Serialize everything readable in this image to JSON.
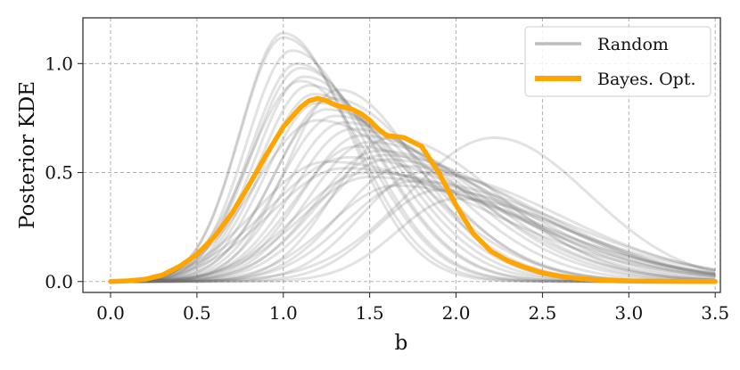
{
  "chart_data": {
    "type": "line",
    "xlabel": "b",
    "ylabel": "Posterior KDE",
    "xlim": [
      -0.16,
      3.53
    ],
    "ylim": [
      -0.05,
      1.21
    ],
    "xticks": [
      "0.0",
      "0.5",
      "1.0",
      "1.5",
      "2.0",
      "2.5",
      "3.0",
      "3.5"
    ],
    "yticks": [
      "0.0",
      "0.5",
      "1.0"
    ],
    "grid": true,
    "legend_position": "top-right",
    "legend": [
      {
        "label": "Random",
        "color": "#bdbdbd"
      },
      {
        "label": "Bayes. Opt.",
        "color": "#ffa500"
      }
    ],
    "colors": {
      "random": "#707070",
      "bayes": "#ffa500",
      "grid": "#b0b0b0"
    },
    "random_series_params": [
      [
        1.0,
        0.25,
        0.38,
        1.14
      ],
      [
        1.0,
        0.25,
        0.4,
        1.12
      ],
      [
        1.05,
        0.26,
        0.42,
        1.06
      ],
      [
        1.08,
        0.27,
        0.45,
        1.0
      ],
      [
        1.1,
        0.28,
        0.45,
        0.98
      ],
      [
        1.12,
        0.28,
        0.48,
        0.94
      ],
      [
        1.15,
        0.29,
        0.5,
        0.9
      ],
      [
        1.18,
        0.3,
        0.52,
        0.86
      ],
      [
        1.2,
        0.3,
        0.55,
        0.82
      ],
      [
        1.25,
        0.31,
        0.58,
        0.79
      ],
      [
        1.3,
        0.32,
        0.62,
        0.76
      ],
      [
        1.35,
        0.33,
        0.65,
        0.73
      ],
      [
        1.4,
        0.34,
        0.66,
        0.7
      ],
      [
        1.45,
        0.34,
        0.68,
        0.67
      ],
      [
        1.5,
        0.35,
        0.7,
        0.64
      ],
      [
        1.55,
        0.36,
        0.72,
        0.6
      ],
      [
        1.6,
        0.37,
        0.75,
        0.56
      ],
      [
        1.7,
        0.36,
        0.78,
        0.53
      ],
      [
        1.8,
        0.35,
        0.8,
        0.5
      ],
      [
        1.25,
        0.4,
        0.9,
        0.55
      ],
      [
        1.35,
        0.42,
        0.95,
        0.52
      ],
      [
        1.5,
        0.4,
        0.85,
        0.48
      ],
      [
        1.65,
        0.38,
        0.82,
        0.44
      ],
      [
        1.9,
        0.35,
        0.7,
        0.42
      ],
      [
        2.0,
        0.34,
        0.68,
        0.38
      ],
      [
        1.1,
        0.3,
        0.4,
        0.92
      ],
      [
        1.28,
        0.32,
        0.55,
        0.84
      ],
      [
        1.42,
        0.35,
        0.7,
        0.62
      ],
      [
        1.58,
        0.38,
        0.8,
        0.58
      ],
      [
        1.75,
        0.38,
        0.85,
        0.46
      ],
      [
        1.2,
        0.36,
        0.6,
        0.74
      ],
      [
        1.32,
        0.3,
        0.46,
        0.88
      ],
      [
        1.48,
        0.4,
        0.95,
        0.5
      ],
      [
        1.62,
        0.33,
        0.62,
        0.66
      ],
      [
        1.38,
        0.45,
        0.85,
        0.57
      ],
      [
        2.22,
        0.5,
        0.55,
        0.66
      ]
    ],
    "bayes_opt": {
      "x": [
        0.0,
        0.1,
        0.2,
        0.3,
        0.4,
        0.5,
        0.6,
        0.7,
        0.8,
        0.9,
        1.0,
        1.1,
        1.15,
        1.2,
        1.25,
        1.3,
        1.35,
        1.4,
        1.45,
        1.5,
        1.55,
        1.6,
        1.7,
        1.8,
        1.9,
        2.0,
        2.1,
        2.2,
        2.3,
        2.4,
        2.5,
        2.6,
        2.7,
        2.8,
        2.9,
        3.0,
        3.2,
        3.5
      ],
      "y": [
        0.0,
        0.003,
        0.01,
        0.03,
        0.07,
        0.125,
        0.205,
        0.31,
        0.44,
        0.58,
        0.71,
        0.8,
        0.83,
        0.84,
        0.83,
        0.81,
        0.8,
        0.79,
        0.77,
        0.74,
        0.7,
        0.67,
        0.66,
        0.62,
        0.5,
        0.35,
        0.22,
        0.14,
        0.095,
        0.065,
        0.04,
        0.025,
        0.015,
        0.008,
        0.004,
        0.002,
        0.001,
        0.0
      ]
    }
  }
}
